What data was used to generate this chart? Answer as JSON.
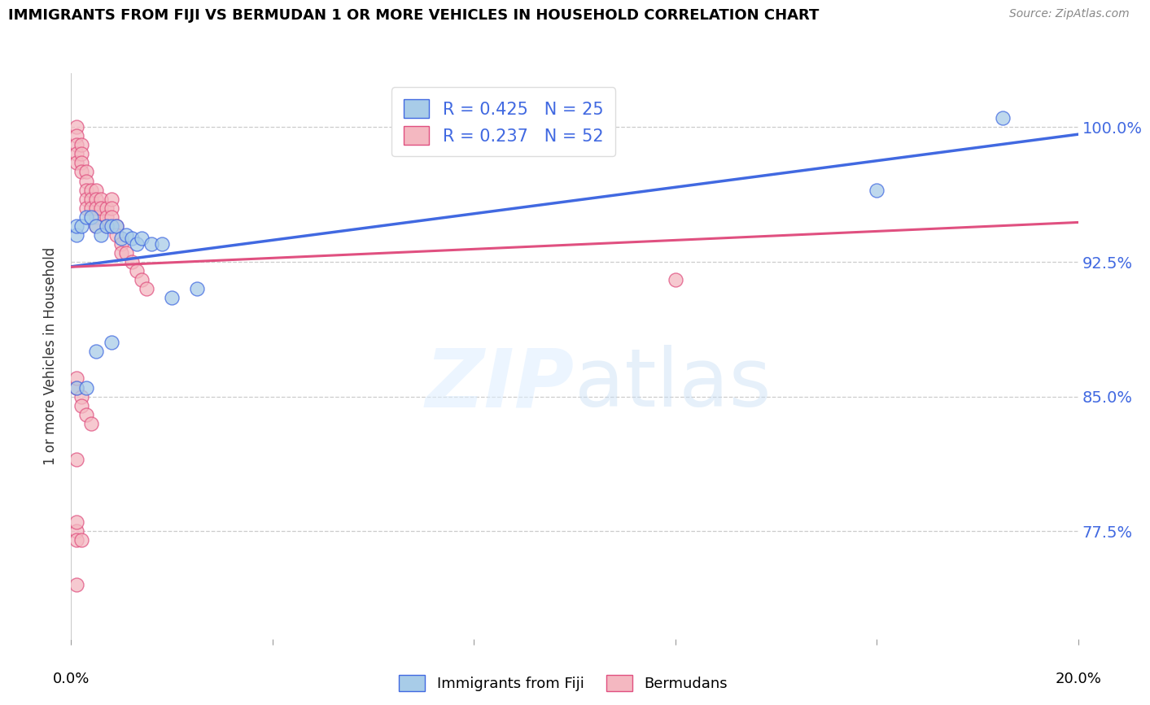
{
  "title": "IMMIGRANTS FROM FIJI VS BERMUDAN 1 OR MORE VEHICLES IN HOUSEHOLD CORRELATION CHART",
  "source": "Source: ZipAtlas.com",
  "ylabel": "1 or more Vehicles in Household",
  "ytick_labels": [
    "100.0%",
    "92.5%",
    "85.0%",
    "77.5%"
  ],
  "ytick_values": [
    1.0,
    0.925,
    0.85,
    0.775
  ],
  "xlim": [
    0.0,
    0.2
  ],
  "ylim": [
    0.715,
    1.03
  ],
  "fiji_R": 0.425,
  "fiji_N": 25,
  "bermuda_R": 0.237,
  "bermuda_N": 52,
  "fiji_color": "#a8cce8",
  "bermuda_color": "#f4b8c1",
  "fiji_line_color": "#4169e1",
  "bermuda_line_color": "#e05080",
  "legend_fiji": "Immigrants from Fiji",
  "legend_bermuda": "Bermudans",
  "fiji_x": [
    0.001,
    0.001,
    0.002,
    0.003,
    0.004,
    0.005,
    0.006,
    0.007,
    0.008,
    0.009,
    0.01,
    0.011,
    0.012,
    0.013,
    0.014,
    0.016,
    0.018,
    0.02,
    0.001,
    0.003,
    0.005,
    0.008,
    0.025,
    0.16,
    0.185
  ],
  "fiji_y": [
    0.94,
    0.945,
    0.945,
    0.95,
    0.95,
    0.945,
    0.94,
    0.945,
    0.945,
    0.945,
    0.938,
    0.94,
    0.938,
    0.935,
    0.938,
    0.935,
    0.935,
    0.905,
    0.855,
    0.855,
    0.875,
    0.88,
    0.91,
    0.965,
    1.005
  ],
  "bermuda_x": [
    0.001,
    0.001,
    0.001,
    0.001,
    0.001,
    0.002,
    0.002,
    0.002,
    0.002,
    0.003,
    0.003,
    0.003,
    0.003,
    0.003,
    0.004,
    0.004,
    0.004,
    0.005,
    0.005,
    0.005,
    0.005,
    0.005,
    0.006,
    0.006,
    0.007,
    0.007,
    0.007,
    0.008,
    0.008,
    0.008,
    0.009,
    0.009,
    0.01,
    0.01,
    0.011,
    0.012,
    0.013,
    0.014,
    0.015,
    0.001,
    0.001,
    0.002,
    0.002,
    0.003,
    0.004,
    0.001,
    0.001,
    0.001,
    0.002,
    0.001,
    0.001,
    0.12
  ],
  "bermuda_y": [
    1.0,
    0.995,
    0.99,
    0.985,
    0.98,
    0.99,
    0.985,
    0.98,
    0.975,
    0.975,
    0.97,
    0.965,
    0.96,
    0.955,
    0.965,
    0.96,
    0.955,
    0.965,
    0.96,
    0.955,
    0.95,
    0.945,
    0.96,
    0.955,
    0.955,
    0.95,
    0.945,
    0.96,
    0.955,
    0.95,
    0.945,
    0.94,
    0.935,
    0.93,
    0.93,
    0.925,
    0.92,
    0.915,
    0.91,
    0.855,
    0.86,
    0.85,
    0.845,
    0.84,
    0.835,
    0.775,
    0.78,
    0.77,
    0.77,
    0.815,
    0.745,
    0.915
  ],
  "watermark_zip": "ZIP",
  "watermark_atlas": "atlas",
  "xtick_positions": [
    0.0,
    0.04,
    0.08,
    0.12,
    0.16,
    0.2
  ],
  "bottom_xtick_labels": [
    "0.0%",
    "",
    "",
    "",
    "",
    "20.0%"
  ]
}
